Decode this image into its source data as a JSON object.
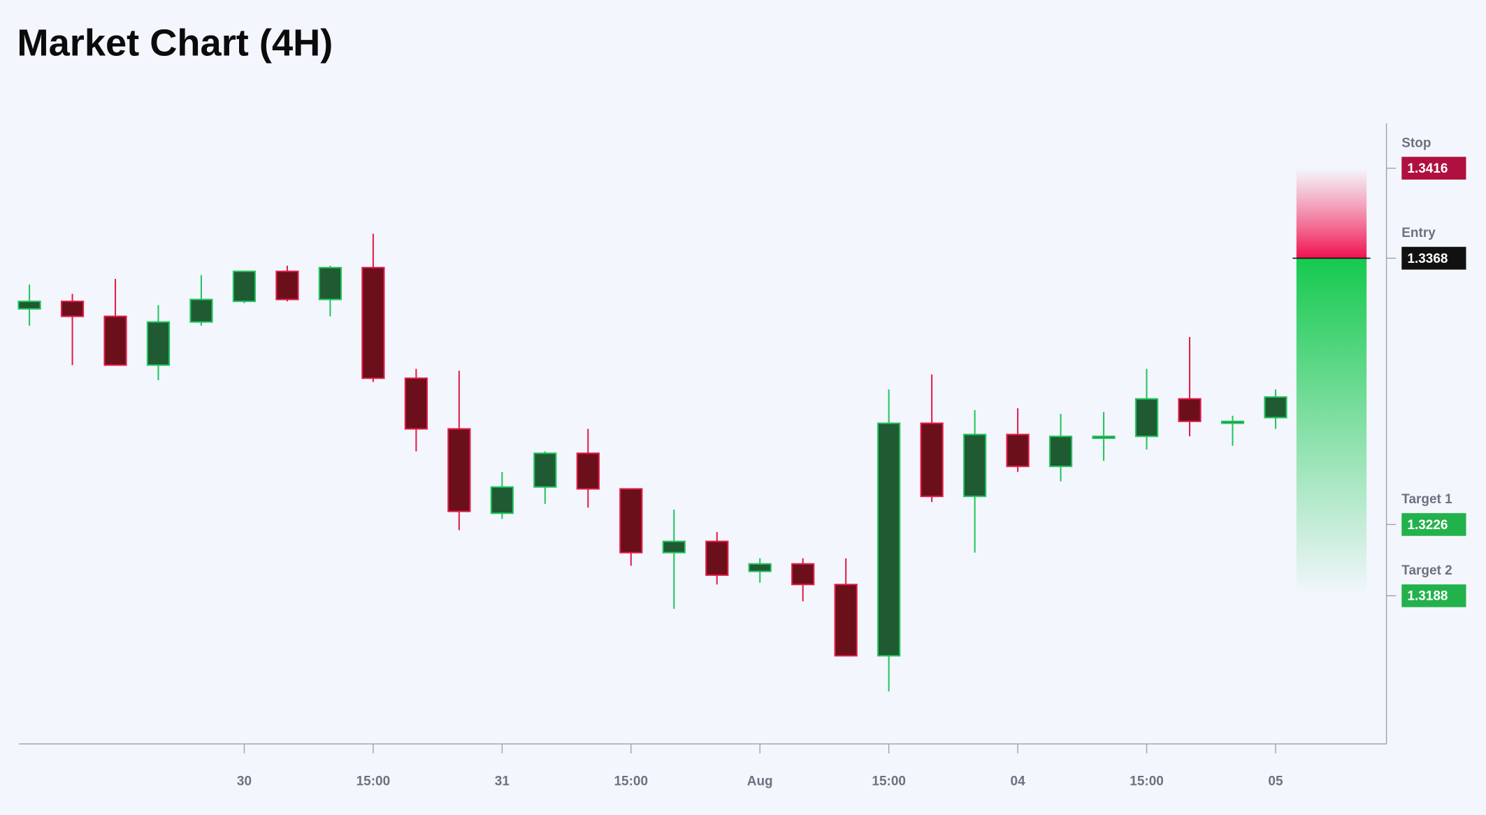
{
  "chart_data": {
    "type": "candlestick",
    "title": "Market Chart (4H)",
    "categories": [
      null,
      null,
      null,
      null,
      null,
      "30",
      null,
      null,
      "15:00",
      null,
      null,
      "31",
      null,
      null,
      "15:00",
      null,
      null,
      "Aug",
      null,
      null,
      "15:00",
      null,
      null,
      "04",
      null,
      null,
      "15:00",
      null,
      null,
      "05"
    ],
    "open": [
      1.3341,
      1.3345,
      1.3337,
      1.3311,
      1.3334,
      1.3345,
      1.3361,
      1.3346,
      1.3363,
      1.3304,
      1.3277,
      1.3232,
      1.3246,
      1.3264,
      1.3245,
      1.3211,
      1.3217,
      1.3201,
      1.3205,
      1.3194,
      1.3156,
      1.328,
      1.3241,
      1.3274,
      1.3257,
      1.3272,
      1.3273,
      1.3293,
      1.328,
      1.3283
    ],
    "high": [
      1.3354,
      1.3349,
      1.3357,
      1.3343,
      1.3359,
      1.3361,
      1.3364,
      1.3364,
      1.3381,
      1.3309,
      1.3308,
      1.3254,
      1.3265,
      1.3277,
      1.3245,
      1.3234,
      1.3222,
      1.3208,
      1.3208,
      1.3208,
      1.3298,
      1.3306,
      1.3287,
      1.3288,
      1.3285,
      1.3286,
      1.3309,
      1.3326,
      1.3284,
      1.3298
    ],
    "low": [
      1.3332,
      1.3311,
      1.3311,
      1.3303,
      1.3332,
      1.3344,
      1.3345,
      1.3337,
      1.3302,
      1.3265,
      1.3223,
      1.3229,
      1.3237,
      1.3235,
      1.3204,
      1.3181,
      1.3194,
      1.3195,
      1.3185,
      1.3156,
      1.3137,
      1.3238,
      1.3211,
      1.3254,
      1.3249,
      1.326,
      1.3266,
      1.3273,
      1.3268,
      1.3277
    ],
    "close": [
      1.3345,
      1.3337,
      1.3311,
      1.3334,
      1.3346,
      1.3361,
      1.3346,
      1.3363,
      1.3304,
      1.3277,
      1.3233,
      1.3246,
      1.3264,
      1.3245,
      1.3211,
      1.3217,
      1.3199,
      1.3205,
      1.3194,
      1.3156,
      1.328,
      1.3241,
      1.3274,
      1.3257,
      1.3273,
      1.3273,
      1.3293,
      1.3281,
      1.3281,
      1.3294
    ],
    "up_color": "#22c55e",
    "up_fill": "#1f5a32",
    "down_color": "#e11d48",
    "down_fill": "#6b0f1a",
    "ylim": [
      1.3109,
      1.344
    ],
    "levels": [
      {
        "name": "Stop",
        "value": 1.3416,
        "color": "#b0103f"
      },
      {
        "name": "Entry",
        "value": 1.3368,
        "color": "#111111"
      },
      {
        "name": "Target 1",
        "value": 1.3226,
        "color": "#22b24c"
      },
      {
        "name": "Target 2",
        "value": 1.3188,
        "color": "#22b24c"
      }
    ]
  }
}
